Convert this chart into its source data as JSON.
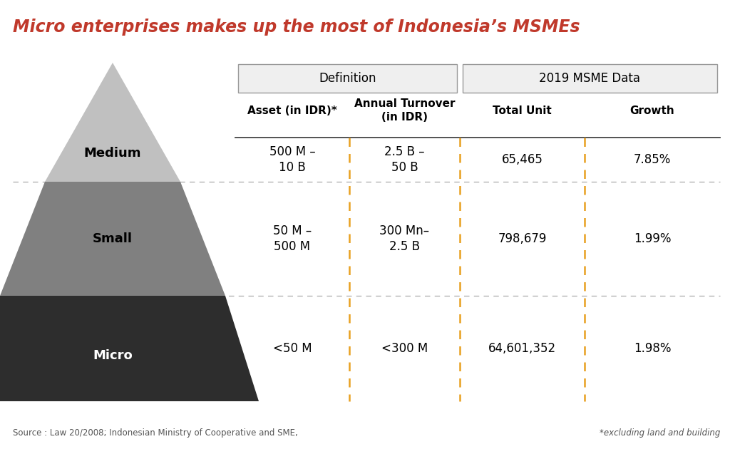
{
  "title": "Micro enterprises makes up the most of Indonesia’s MSMEs",
  "title_color": "#c0392b",
  "background_color": "#ffffff",
  "medium_color": "#c0c0c0",
  "small_color": "#808080",
  "micro_color": "#2d2d2d",
  "header_def_label": "Definition",
  "header_data_label": "2019 MSME Data",
  "col_headers": [
    "Asset (in IDR)*",
    "Annual Turnover\n(in IDR)",
    "Total Unit",
    "Growth"
  ],
  "rows": [
    {
      "asset": "500 M –\n10 B",
      "turnover": "2.5 B –\n50 B",
      "total_unit": "65,465",
      "growth": "7.85%"
    },
    {
      "asset": "50 M –\n500 M",
      "turnover": "300 Mn–\n2.5 B",
      "total_unit": "798,679",
      "growth": "1.99%"
    },
    {
      "asset": "<50 M",
      "turnover": "<300 M",
      "total_unit": "64,601,352",
      "growth": "1.98%"
    }
  ],
  "source_text": "Source : Law 20/2008; Indonesian Ministry of Cooperative and SME,",
  "footnote_text": "*excluding land and building",
  "dashed_col_color": "#e8a020",
  "dashed_row_color": "#aaaaaa",
  "header_box_color": "#efefef",
  "header_box_edge": "#999999"
}
